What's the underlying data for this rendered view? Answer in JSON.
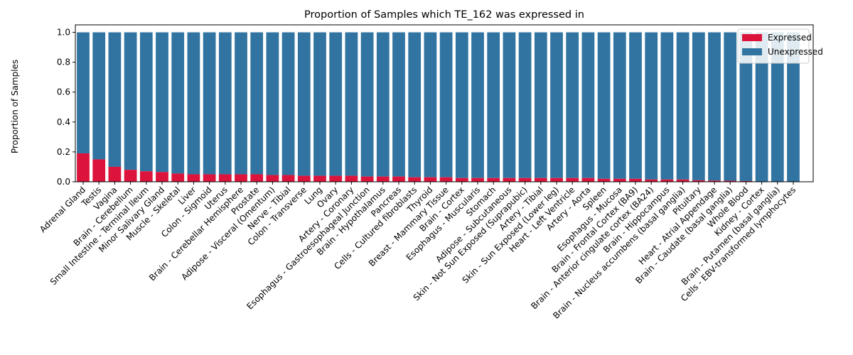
{
  "chart_data": {
    "type": "bar",
    "stacked": true,
    "title": "Proportion of Samples which TE_162 was expressed in",
    "xlabel": "",
    "ylabel": "Proportion of Samples",
    "ylim": [
      0,
      1.05
    ],
    "yticks": [
      "0.0",
      "0.2",
      "0.4",
      "0.6",
      "0.8",
      "1.0"
    ],
    "grid": false,
    "legend_position": "top-right",
    "categories": [
      "Adrenal Gland",
      "Testis",
      "Vagina",
      "Brain - Cerebellum",
      "Small Intestine - Terminal Ileum",
      "Minor Salivary Gland",
      "Muscle - Skeletal",
      "Liver",
      "Colon - Sigmoid",
      "Uterus",
      "Brain - Cerebellar Hemisphere",
      "Prostate",
      "Adipose - Visceral (Omentum)",
      "Nerve - Tibial",
      "Colon - Transverse",
      "Lung",
      "Ovary",
      "Artery - Coronary",
      "Esophagus - Gastroesophageal Junction",
      "Brain - Hypothalamus",
      "Pancreas",
      "Cells - Cultured fibroblasts",
      "Thyroid",
      "Breast - Mammary Tissue",
      "Brain - Cortex",
      "Esophagus - Muscularis",
      "Stomach",
      "Adipose - Subcutaneous",
      "Skin - Not Sun Exposed (Suprapubic)",
      "Artery - Tibial",
      "Skin - Sun Exposed (Lower leg)",
      "Heart - Left Ventricle",
      "Artery - Aorta",
      "Spleen",
      "Esophagus - Mucosa",
      "Brain - Frontal Cortex (BA9)",
      "Brain - Anterior cingulate cortex (BA24)",
      "Brain - Hippocampus",
      "Brain - Nucleus accumbens (basal ganglia)",
      "Pituitary",
      "Heart - Atrial Appendage",
      "Brain - Caudate (basal ganglia)",
      "Whole Blood",
      "Kidney - Cortex",
      "Brain - Putamen (basal ganglia)",
      "Cells - EBV-transformed lymphocytes"
    ],
    "series": [
      {
        "name": "Expressed",
        "color": "#dc143c",
        "values": [
          0.19,
          0.15,
          0.1,
          0.08,
          0.07,
          0.065,
          0.055,
          0.05,
          0.05,
          0.05,
          0.05,
          0.05,
          0.045,
          0.045,
          0.04,
          0.04,
          0.04,
          0.04,
          0.035,
          0.035,
          0.035,
          0.03,
          0.03,
          0.03,
          0.025,
          0.025,
          0.025,
          0.025,
          0.025,
          0.025,
          0.025,
          0.025,
          0.025,
          0.02,
          0.02,
          0.02,
          0.015,
          0.015,
          0.015,
          0.01,
          0.008,
          0.007,
          0.005,
          0.0,
          0.0,
          0.0
        ]
      },
      {
        "name": "Unexpressed",
        "color": "#3274a1",
        "values": [
          0.81,
          0.85,
          0.9,
          0.92,
          0.93,
          0.935,
          0.945,
          0.95,
          0.95,
          0.95,
          0.95,
          0.95,
          0.955,
          0.955,
          0.96,
          0.96,
          0.96,
          0.96,
          0.965,
          0.965,
          0.965,
          0.97,
          0.97,
          0.97,
          0.975,
          0.975,
          0.975,
          0.975,
          0.975,
          0.975,
          0.975,
          0.975,
          0.975,
          0.98,
          0.98,
          0.98,
          0.985,
          0.985,
          0.985,
          0.99,
          0.992,
          0.993,
          0.995,
          1.0,
          1.0,
          1.0
        ]
      }
    ]
  }
}
